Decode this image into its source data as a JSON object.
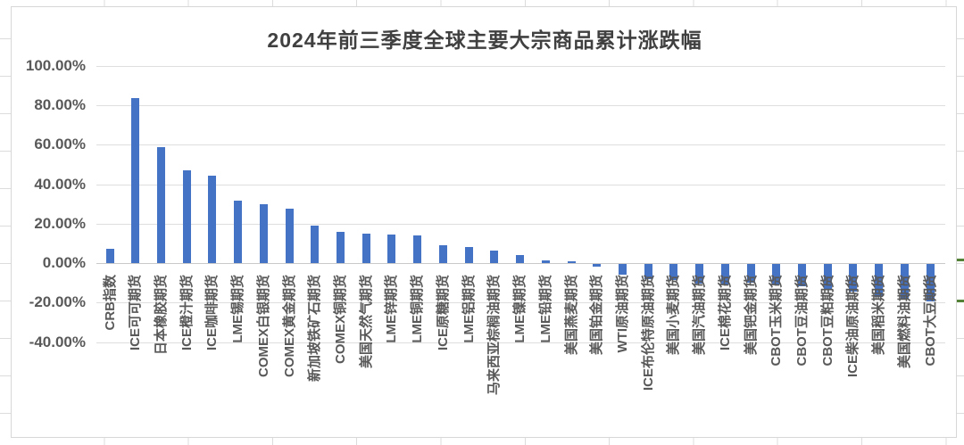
{
  "chart_data": {
    "type": "bar",
    "title": "2024年前三季度全球主要大宗商品累计涨跌幅",
    "categories": [
      "CRB指数",
      "ICE可可期货",
      "日本橡胶期货",
      "ICE橙汁期货",
      "ICE咖啡期货",
      "LME锡期货",
      "COMEX白银期货",
      "COMEX黄金期货",
      "新加坡铁矿石期货",
      "COMEX铜期货",
      "美国天然气期货",
      "LME锌期货",
      "LME铜期货",
      "ICE原糖期货",
      "LME铝期货",
      "马来西亚棕榈油期货",
      "LME镍期货",
      "LME铅期货",
      "美国燕麦期货",
      "美国铂金期货",
      "WTI原油期货",
      "ICE布伦特原油期货",
      "美国小麦期货",
      "美国汽油期货",
      "ICE棉花期货",
      "美国钯金期货",
      "CBOT玉米期货",
      "CBOT豆油期货",
      "CBOT豆粕期货",
      "ICE柴油原油期货",
      "美国稻米期货",
      "美国燃料油期货",
      "CBOT大豆期货"
    ],
    "values": [
      7.1,
      83.5,
      58.9,
      47.0,
      44.1,
      31.8,
      29.8,
      27.4,
      18.8,
      16.0,
      14.9,
      14.5,
      14.0,
      8.9,
      8.0,
      6.3,
      4.1,
      1.5,
      0.8,
      -1.5,
      -5.4,
      -7.7,
      -8.1,
      -9.9,
      -10.5,
      -9.6,
      -10.2,
      -11.4,
      -12.5,
      -14.0,
      -16.6,
      -17.5,
      -19.0
    ],
    "value_unit": "%",
    "yticks": [
      100,
      80,
      60,
      40,
      20,
      0,
      -20,
      -40
    ],
    "ytick_labels": [
      "100.00%",
      "80.00%",
      "60.00%",
      "40.00%",
      "20.00%",
      "0.00%",
      "-20.00%",
      "-40.00%"
    ],
    "ylim": [
      -40,
      100
    ],
    "xlabel": "",
    "ylabel": "",
    "grid": true,
    "legend": false,
    "bar_color": "#4472C4",
    "text_color": "#595959",
    "title_color": "#404040",
    "gridline_color": "#DEDEDE",
    "sheet_marker_color": "#538135"
  }
}
